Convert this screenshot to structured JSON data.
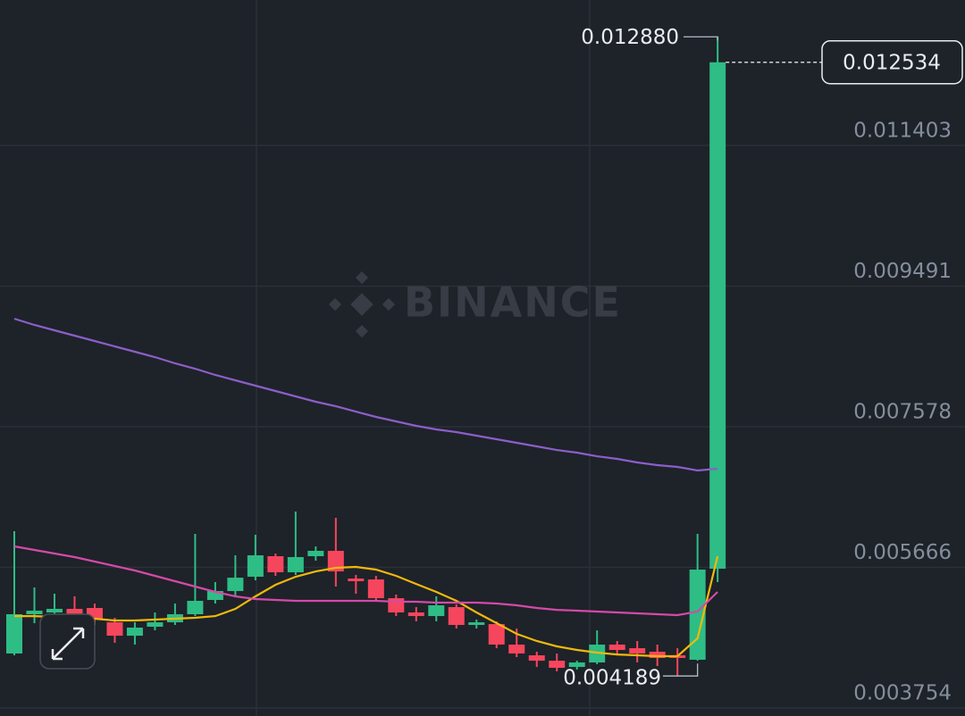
{
  "chart_data": {
    "type": "candlestick",
    "watermark": "BINANCE",
    "categories": [
      null,
      null,
      null,
      null,
      null,
      null,
      null,
      null,
      null,
      null,
      null,
      null,
      null,
      null,
      null,
      null,
      null,
      null,
      null,
      null,
      null,
      null,
      null,
      null,
      null,
      null,
      null,
      null,
      null,
      null,
      null,
      null,
      null,
      null,
      null,
      null
    ],
    "open": [
      0.004495,
      0.005029,
      0.005053,
      0.005102,
      0.005114,
      0.004919,
      0.004737,
      0.004859,
      0.004919,
      0.005029,
      0.005223,
      0.005344,
      0.005539,
      0.005818,
      0.005599,
      0.005818,
      0.005891,
      0.005514,
      0.005502,
      0.005247,
      0.005053,
      0.005004,
      0.005126,
      0.004883,
      0.004895,
      0.004616,
      0.00447,
      0.004397,
      0.004312,
      0.004373,
      0.004616,
      0.004567,
      0.004519,
      0.00447,
      0.00441,
      0.005648
    ],
    "high": [
      0.006158,
      0.005393,
      0.005308,
      0.005272,
      0.005174,
      0.00498,
      0.004919,
      0.005053,
      0.005174,
      0.006121,
      0.005466,
      0.00583,
      0.006109,
      0.005854,
      0.006425,
      0.005951,
      0.00634,
      0.005563,
      0.005551,
      0.005296,
      0.005126,
      0.005272,
      0.005162,
      0.004956,
      0.004932,
      0.004834,
      0.004519,
      0.004495,
      0.004397,
      0.00481,
      0.004665,
      0.004665,
      0.004616,
      0.004567,
      0.006121,
      0.01288
    ],
    "low": [
      0.00447,
      0.004907,
      0.00498,
      0.004956,
      0.004883,
      0.00464,
      0.004616,
      0.00481,
      0.004883,
      0.005004,
      0.005174,
      0.005272,
      0.00549,
      0.005551,
      0.005563,
      0.005757,
      0.005405,
      0.005308,
      0.005223,
      0.005004,
      0.004932,
      0.004932,
      0.004834,
      0.004834,
      0.004567,
      0.004446,
      0.004312,
      0.004252,
      0.004276,
      0.004349,
      0.00447,
      0.004373,
      0.004325,
      0.004189,
      0.004397,
      0.005466
    ],
    "close": [
      0.005029,
      0.005077,
      0.005102,
      0.005029,
      0.004956,
      0.004737,
      0.004847,
      0.004919,
      0.005029,
      0.005211,
      0.005344,
      0.005526,
      0.00583,
      0.005599,
      0.005806,
      0.005891,
      0.005611,
      0.005478,
      0.005247,
      0.005053,
      0.005004,
      0.00515,
      0.004883,
      0.004919,
      0.004616,
      0.004495,
      0.004397,
      0.0043,
      0.004373,
      0.004616,
      0.004543,
      0.004495,
      0.004434,
      0.004434,
      0.005636,
      0.012534
    ],
    "up_color": "#2ebd85",
    "down_color": "#f6465d",
    "series": [
      {
        "color": "#f0b90b",
        "values": [
          0.005004,
          0.005004,
          0.004992,
          0.00498,
          0.004968,
          0.004944,
          0.004944,
          0.004956,
          0.004968,
          0.00498,
          0.005004,
          0.005102,
          0.005272,
          0.005429,
          0.005539,
          0.005611,
          0.00566,
          0.005672,
          0.005636,
          0.005551,
          0.005441,
          0.005332,
          0.005211,
          0.005053,
          0.004907,
          0.004762,
          0.004665,
          0.004592,
          0.004543,
          0.004507,
          0.004482,
          0.00447,
          0.004458,
          0.004458,
          0.004701,
          0.005818
        ]
      },
      {
        "color": "#d44aa8",
        "values": [
          0.005951,
          0.005903,
          0.005854,
          0.005806,
          0.005745,
          0.005684,
          0.005624,
          0.005551,
          0.005478,
          0.005405,
          0.005332,
          0.005272,
          0.005235,
          0.005223,
          0.005211,
          0.005211,
          0.005211,
          0.005211,
          0.005211,
          0.005199,
          0.005199,
          0.005187,
          0.005187,
          0.005187,
          0.005174,
          0.00515,
          0.005114,
          0.005089,
          0.005077,
          0.005065,
          0.005053,
          0.005041,
          0.005029,
          0.005017,
          0.005065,
          0.005332
        ]
      },
      {
        "color": "#8c5ec9",
        "values": [
          0.009047,
          0.008962,
          0.008889,
          0.008816,
          0.008744,
          0.008671,
          0.008598,
          0.008525,
          0.00844,
          0.008367,
          0.008282,
          0.008209,
          0.008137,
          0.008064,
          0.007991,
          0.007918,
          0.007857,
          0.007784,
          0.007712,
          0.007651,
          0.00759,
          0.007542,
          0.007505,
          0.007457,
          0.007408,
          0.00736,
          0.007311,
          0.007262,
          0.007226,
          0.007177,
          0.007141,
          0.007093,
          0.007056,
          0.007032,
          0.006983,
          0.007008
        ]
      }
    ],
    "ylim": [
      0.003645,
      0.013381
    ],
    "yticks": [
      0.003754,
      0.005666,
      0.007578,
      0.009491,
      0.011403
    ],
    "grid": true,
    "high_annotation": {
      "value": 0.01288,
      "label": "0.012880"
    },
    "low_annotation": {
      "value": 0.004189,
      "label": "0.004189"
    },
    "last_price": {
      "value": 0.012534,
      "label": "0.012534"
    }
  }
}
